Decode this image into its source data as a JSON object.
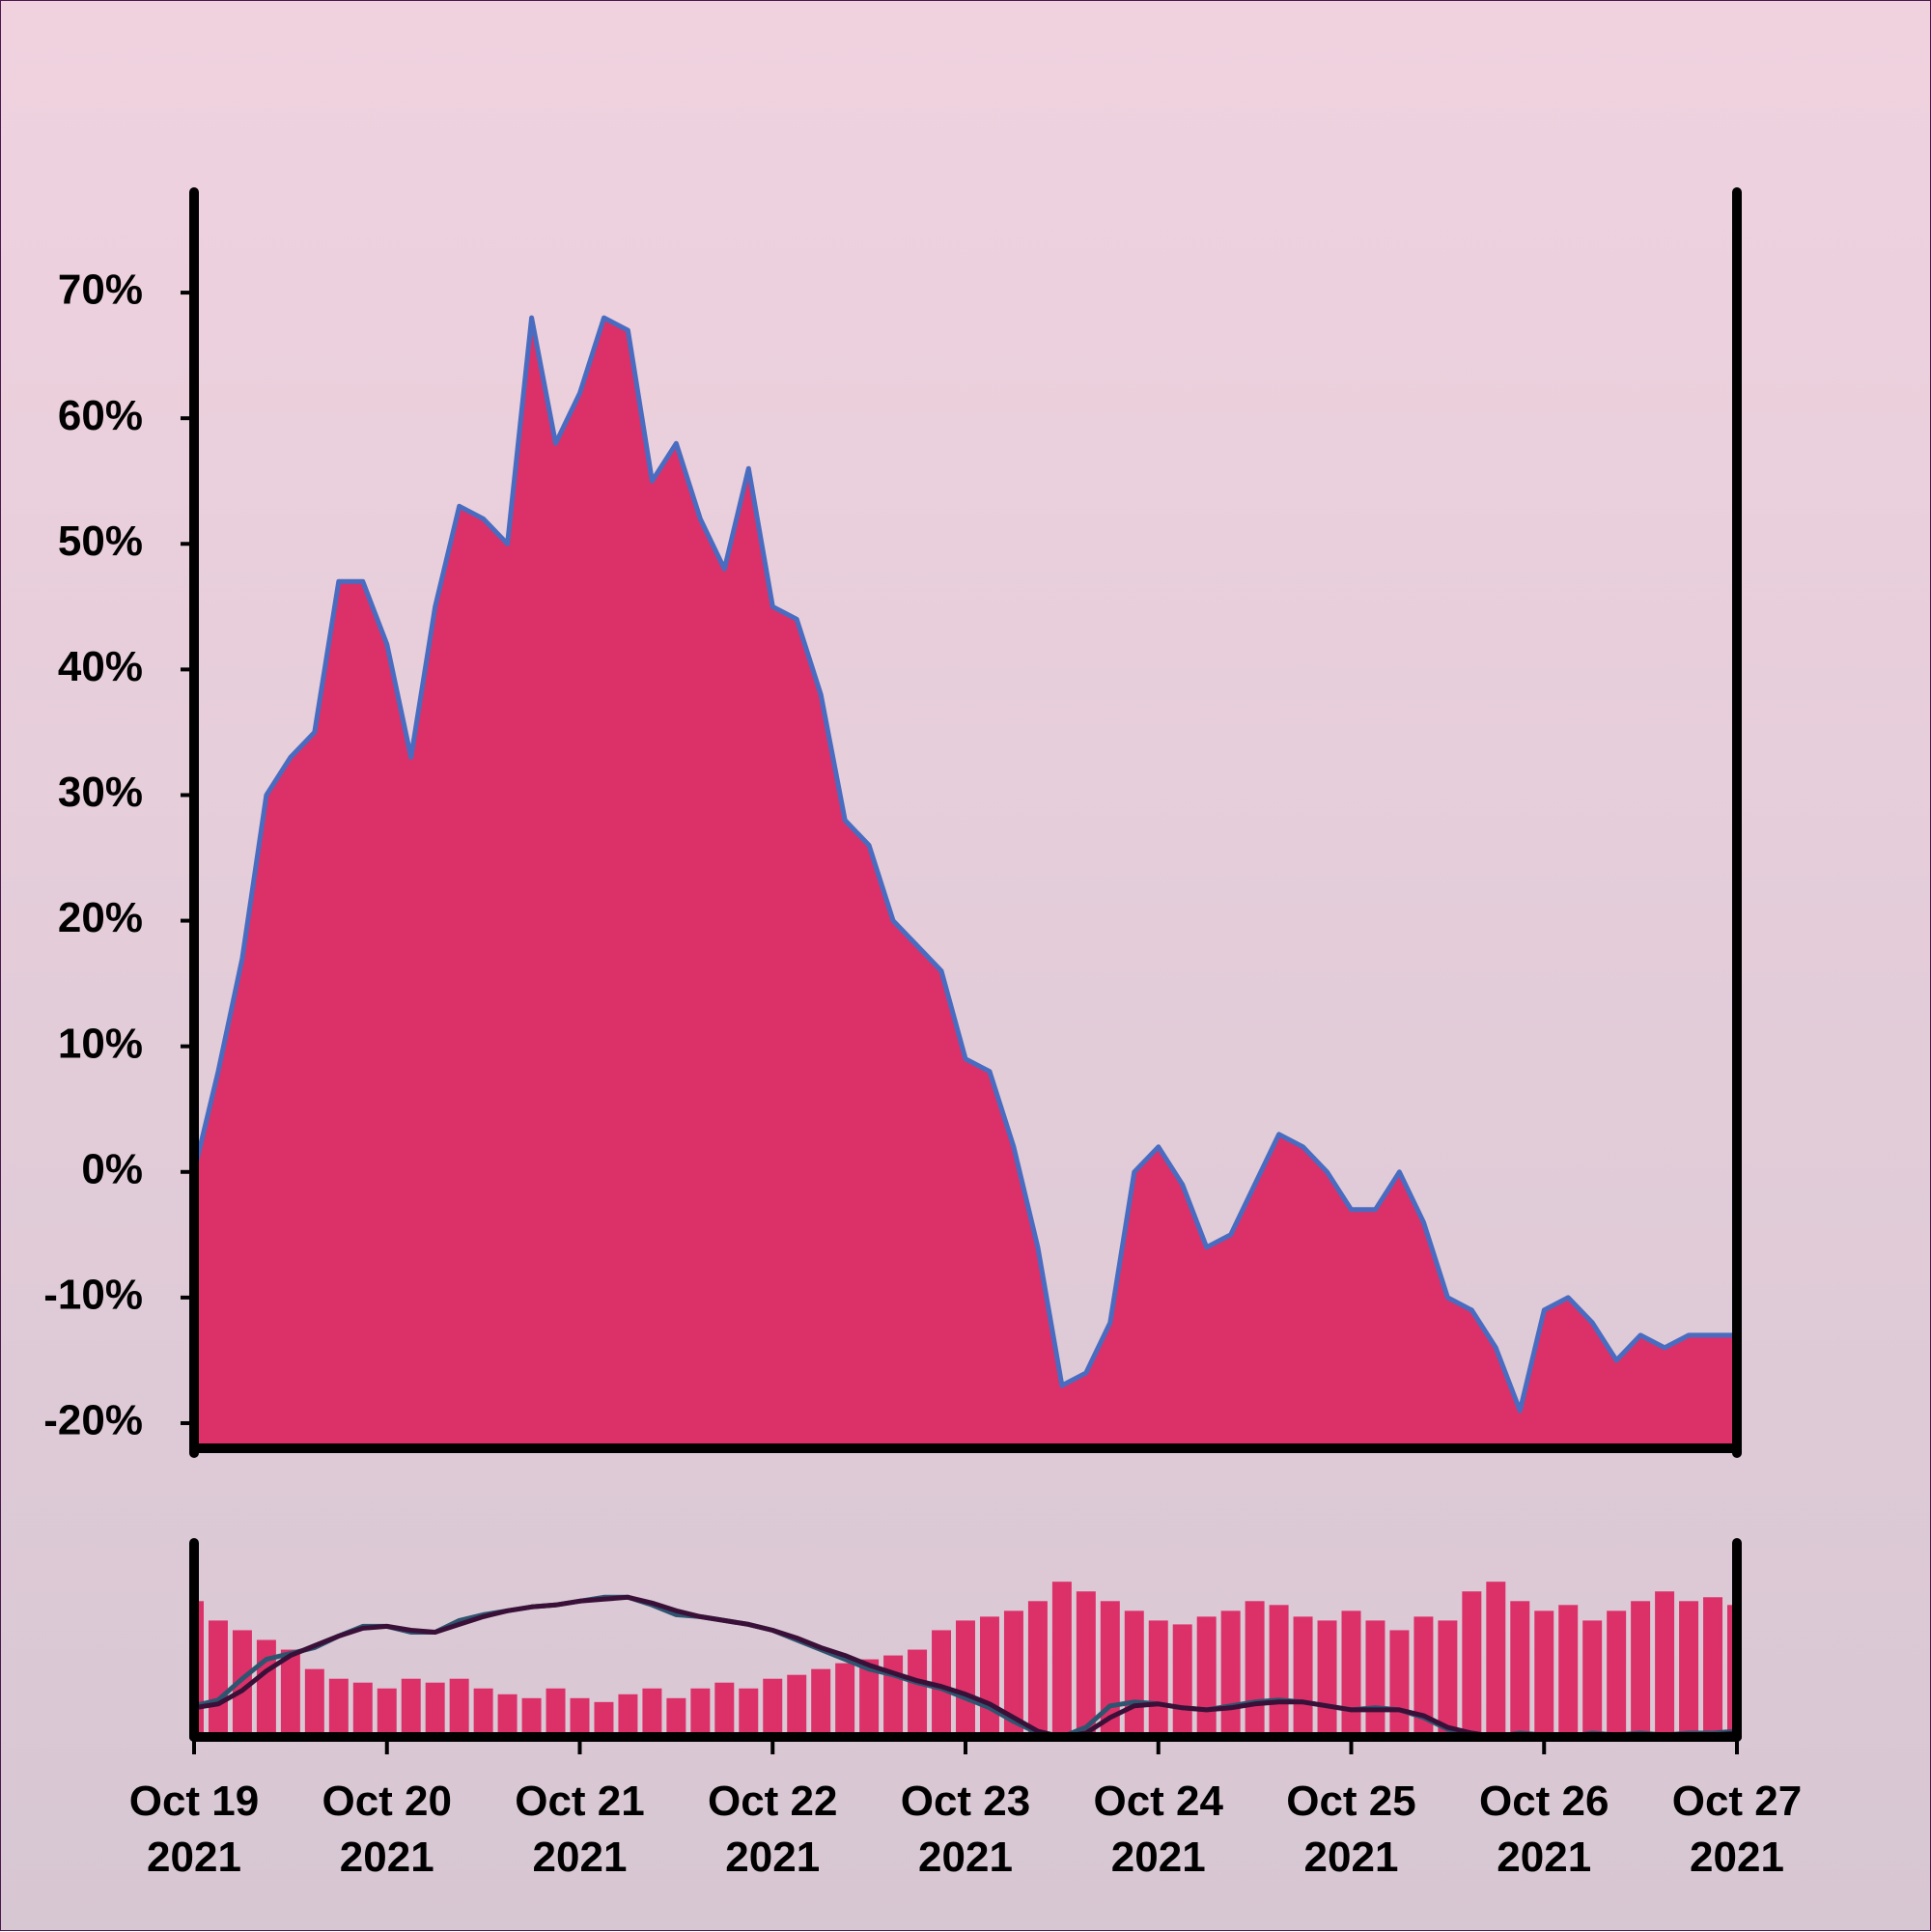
{
  "chart_data": [
    {
      "type": "area",
      "color": "#dc3068",
      "line_color": "#4a6cc0",
      "ylim": [
        -22,
        78
      ],
      "yticks": [
        {
          "value": -20,
          "label": "-20%"
        },
        {
          "value": -10,
          "label": "-10%"
        },
        {
          "value": 0,
          "label": "0%"
        },
        {
          "value": 10,
          "label": "10%"
        },
        {
          "value": 20,
          "label": "20%"
        },
        {
          "value": 30,
          "label": "30%"
        },
        {
          "value": 40,
          "label": "40%"
        },
        {
          "value": 50,
          "label": "50%"
        },
        {
          "value": 60,
          "label": "60%"
        },
        {
          "value": 70,
          "label": "70%"
        }
      ],
      "values": [
        0,
        8,
        17,
        30,
        33,
        35,
        47,
        47,
        42,
        33,
        45,
        53,
        52,
        50,
        68,
        58,
        62,
        68,
        67,
        55,
        58,
        52,
        48,
        56,
        45,
        44,
        38,
        28,
        26,
        20,
        18,
        16,
        9,
        8,
        2,
        -6,
        -17,
        -16,
        -12,
        0,
        2,
        -1,
        -6,
        -5,
        -1,
        3,
        2,
        0,
        -3,
        -3,
        0,
        -4,
        -10,
        -11,
        -14,
        -19,
        -11,
        -10,
        -12,
        -15,
        -13,
        -14,
        -13,
        -13,
        -13
      ]
    },
    {
      "type": "volume",
      "categories": [
        "Oct 19\n2021",
        null,
        null,
        null,
        null,
        null,
        null,
        null,
        "Oct 20\n2021",
        null,
        null,
        null,
        null,
        null,
        null,
        null,
        "Oct 21\n2021",
        null,
        null,
        null,
        null,
        null,
        null,
        null,
        "Oct 22\n2021",
        null,
        null,
        null,
        null,
        null,
        null,
        null,
        "Oct 23\n2021",
        null,
        null,
        null,
        null,
        null,
        null,
        null,
        "Oct 24\n2021",
        null,
        null,
        null,
        null,
        null,
        null,
        null,
        "Oct 25\n2021",
        null,
        null,
        null,
        null,
        null,
        null,
        null,
        "Oct 26\n2021",
        null,
        null,
        null,
        null,
        null,
        null,
        null,
        "Oct 27\n2021"
      ],
      "ylim": [
        0,
        100
      ],
      "series": [
        {
          "type": "bar",
          "color": "#dc3068",
          "values": [
            70,
            60,
            55,
            50,
            45,
            35,
            30,
            28,
            25,
            30,
            28,
            30,
            25,
            22,
            20,
            25,
            20,
            18,
            22,
            25,
            20,
            25,
            28,
            25,
            30,
            32,
            35,
            38,
            40,
            42,
            45,
            55,
            60,
            62,
            65,
            70,
            80,
            75,
            70,
            65,
            60,
            58,
            62,
            65,
            70,
            68,
            62,
            60,
            65,
            60,
            55,
            62,
            60,
            75,
            80,
            70,
            65,
            68,
            60,
            65,
            70,
            75,
            70,
            72,
            68
          ]
        },
        {
          "type": "line",
          "color": "#2e5570",
          "values": [
            16,
            19,
            30,
            40,
            43,
            46,
            52,
            57,
            57,
            54,
            54,
            60,
            63,
            65,
            67,
            68,
            70,
            72,
            72,
            68,
            63,
            62,
            60,
            58,
            55,
            50,
            45,
            40,
            35,
            32,
            28,
            25,
            20,
            15,
            8,
            2,
            0,
            5,
            16,
            18,
            17,
            15,
            14,
            16,
            18,
            19,
            18,
            16,
            14,
            15,
            14,
            10,
            4,
            2,
            0,
            2,
            1,
            0,
            2,
            1,
            2,
            1,
            2,
            2,
            3
          ]
        },
        {
          "type": "line",
          "color": "#3a1038",
          "values": [
            15,
            17,
            24,
            34,
            42,
            47,
            52,
            56,
            57,
            55,
            54,
            58,
            62,
            65,
            67,
            68,
            70,
            71,
            72,
            69,
            65,
            62,
            60,
            58,
            55,
            51,
            46,
            42,
            37,
            33,
            29,
            26,
            22,
            17,
            10,
            3,
            0,
            2,
            10,
            16,
            17,
            15,
            14,
            15,
            17,
            18,
            18,
            16,
            14,
            14,
            14,
            11,
            5,
            2,
            0,
            1,
            1,
            0,
            1,
            1,
            1,
            1,
            1,
            1,
            2
          ]
        }
      ]
    }
  ]
}
